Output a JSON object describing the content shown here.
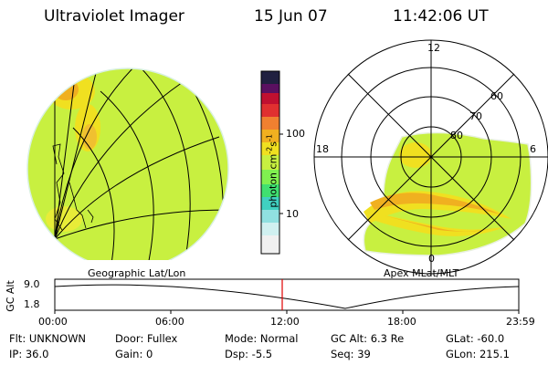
{
  "header": {
    "title": "Ultraviolet Imager",
    "date": "15 Jun 07",
    "time": "11:42:06 UT"
  },
  "colorbar": {
    "unit_main": "photon cm",
    "unit_sup1": "-2",
    "unit_s": "s",
    "unit_sup2": "-1",
    "tick_100": "100",
    "tick_10": "10",
    "colors": [
      "#202040",
      "#5a1060",
      "#c01030",
      "#e03030",
      "#f08030",
      "#f0b020",
      "#f0e020",
      "#c8f040",
      "#80f050",
      "#40e070",
      "#40d0c0",
      "#90e0e0",
      "#d0f0f0",
      "#f0f0f0"
    ]
  },
  "panels": {
    "left_label": "Geographic Lat/Lon",
    "right_label": "Apex MLat/MLT"
  },
  "polar_labels": {
    "mlt_top": "12",
    "mlt_left": "18",
    "mlt_right": "6",
    "mlt_bottom": "0",
    "lat_60": "60",
    "lat_70": "70",
    "lat_80": "80"
  },
  "altitude_plot": {
    "axis_label": "GC Alt",
    "y_max": "9.0",
    "y_min": "1.8",
    "ticks": [
      "00:00",
      "06:00",
      "12:00",
      "18:00",
      "23:59"
    ],
    "marker_color": "#e00000"
  },
  "info": {
    "flt": "Flt: UNKNOWN",
    "ip": "IP: 36.0",
    "door": "Door: Fullex",
    "gain": "Gain: 0",
    "mode": "Mode: Normal",
    "dsp": "Dsp: -5.5",
    "gcalt": "GC Alt: 6.3 Re",
    "seq": "Seq: 39",
    "glat": "GLat: -60.0",
    "glon": "GLon: 215.1"
  },
  "colors": {
    "background": "#c8f040",
    "aurora_orange": "#f0b020",
    "aurora_yellow": "#f0e020",
    "aurora_core": "#f08030"
  }
}
